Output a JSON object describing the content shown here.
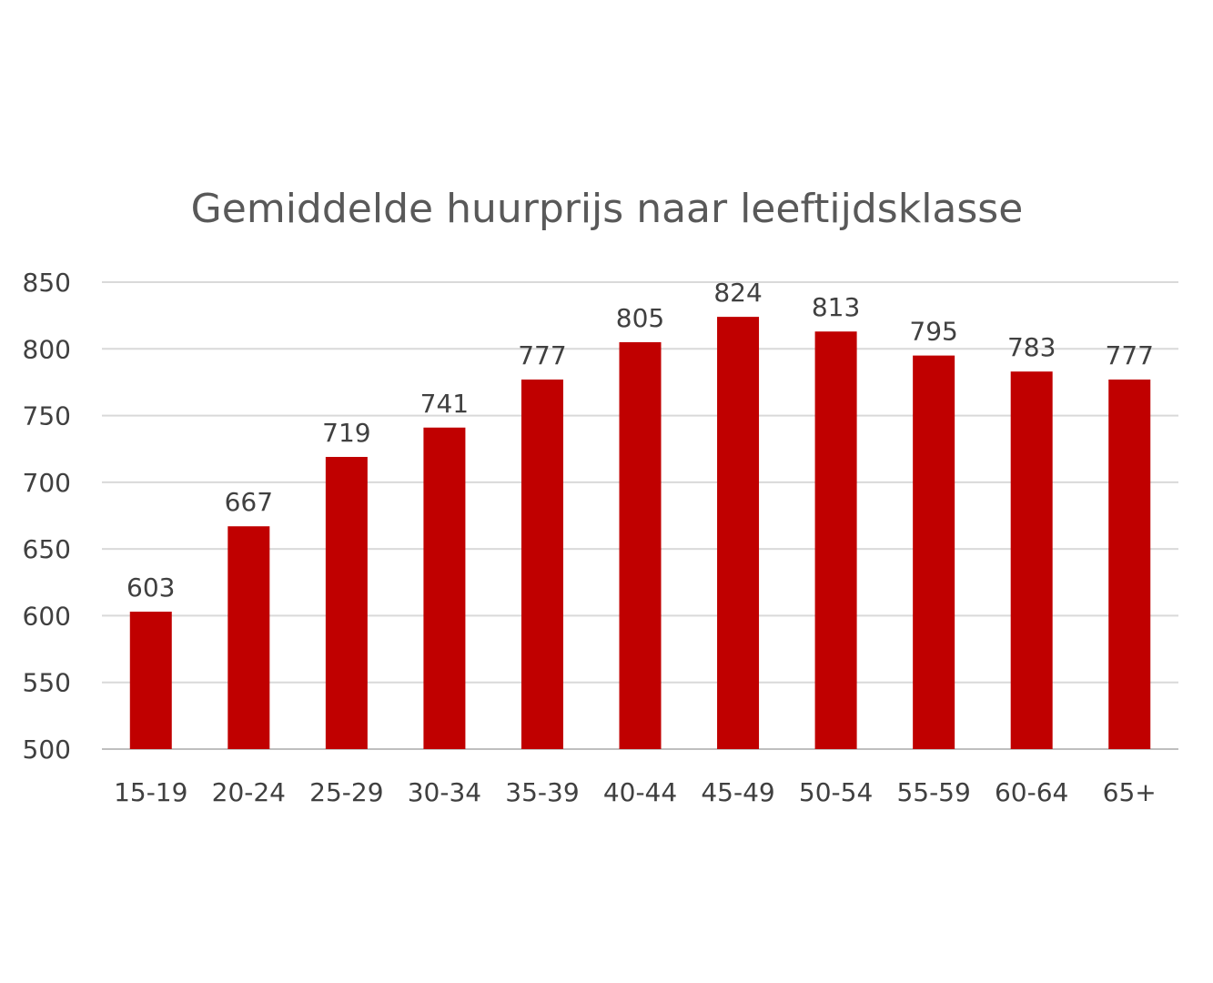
{
  "chart_data": {
    "type": "bar",
    "title": "Gemiddelde huurprijs naar leeftijdsklasse",
    "xlabel": "",
    "ylabel": "",
    "categories": [
      "15-19",
      "20-24",
      "25-29",
      "30-34",
      "35-39",
      "40-44",
      "45-49",
      "50-54",
      "55-59",
      "60-64",
      "65+"
    ],
    "values": [
      603,
      667,
      719,
      741,
      777,
      805,
      824,
      813,
      795,
      783,
      777
    ],
    "ylim": [
      500,
      850
    ],
    "yticks": [
      500,
      550,
      600,
      650,
      700,
      750,
      800,
      850
    ],
    "grid": true,
    "legend": "none",
    "bar_color": "#C00000",
    "data_labels": true
  }
}
